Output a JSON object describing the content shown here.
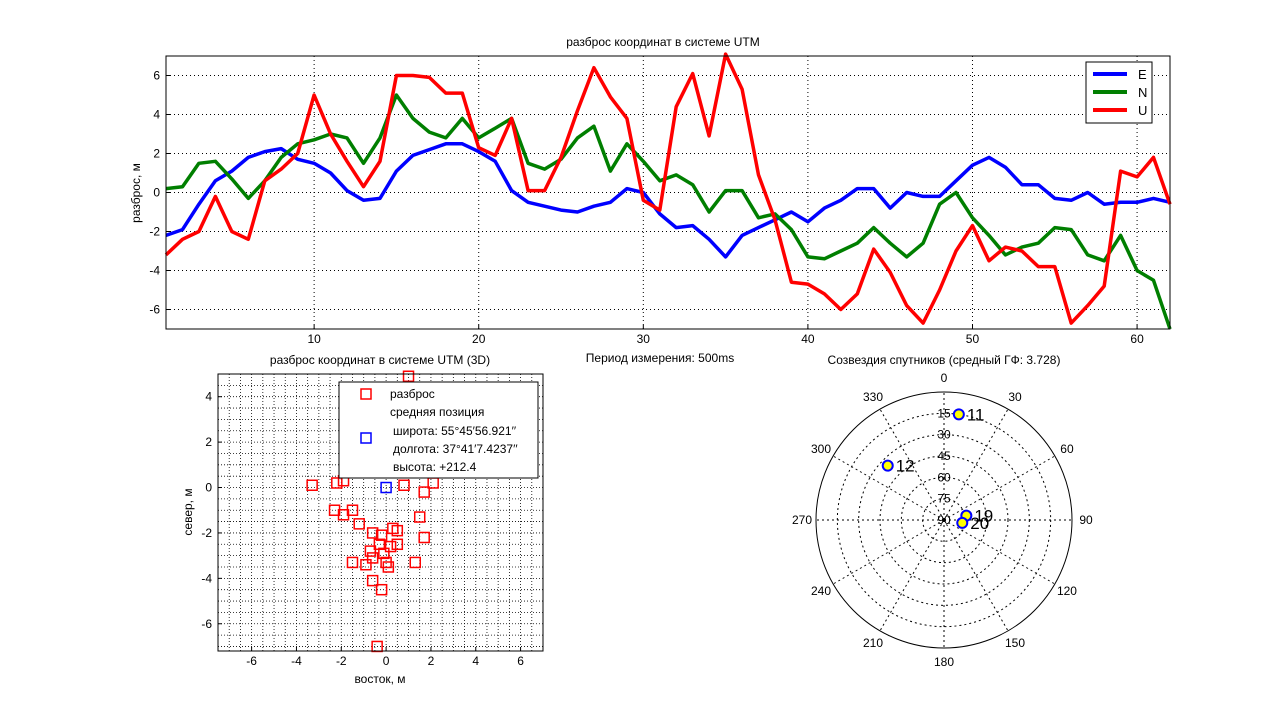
{
  "period_label": "Период измерения: 500ms",
  "chart_data": [
    {
      "type": "line",
      "title": "разброс координат в системе UTM",
      "xlabel": "",
      "ylabel": "разброс, м",
      "xlim": [
        1,
        62
      ],
      "ylim": [
        -7,
        7
      ],
      "xticks": [
        10,
        20,
        30,
        40,
        50,
        60
      ],
      "yticks": [
        -6,
        -4,
        -2,
        0,
        2,
        4,
        6
      ],
      "grid": true,
      "legend_position": "top-right",
      "x": [
        1,
        2,
        3,
        4,
        5,
        6,
        7,
        8,
        9,
        10,
        11,
        12,
        13,
        14,
        15,
        16,
        17,
        18,
        19,
        20,
        21,
        22,
        23,
        24,
        25,
        26,
        27,
        28,
        29,
        30,
        31,
        32,
        33,
        34,
        35,
        36,
        37,
        38,
        39,
        40,
        41,
        42,
        43,
        44,
        45,
        46,
        47,
        48,
        49,
        50,
        51,
        52,
        53,
        54,
        55,
        56,
        57,
        58,
        59,
        60,
        61,
        62
      ],
      "series": [
        {
          "name": "E",
          "color": "#0000ff",
          "values": [
            -2.2,
            -1.9,
            -0.6,
            0.6,
            1.1,
            1.8,
            2.1,
            2.25,
            1.7,
            1.5,
            1.0,
            0.1,
            -0.4,
            -0.3,
            1.1,
            1.9,
            2.2,
            2.5,
            2.5,
            2.1,
            1.6,
            0.1,
            -0.5,
            -0.7,
            -0.9,
            -1.0,
            -0.7,
            -0.5,
            0.2,
            0.0,
            -1.1,
            -1.8,
            -1.7,
            -2.4,
            -3.3,
            -2.2,
            -1.8,
            -1.4,
            -1.0,
            -1.5,
            -0.8,
            -0.4,
            0.2,
            0.2,
            -0.8,
            0.0,
            -0.2,
            -0.2,
            0.6,
            1.4,
            1.8,
            1.3,
            0.4,
            0.4,
            -0.3,
            -0.4,
            0.0,
            -0.6,
            -0.5,
            -0.5,
            -0.3,
            -0.5
          ]
        },
        {
          "name": "N",
          "color": "#007f00",
          "values": [
            0.2,
            0.3,
            1.5,
            1.6,
            0.7,
            -0.3,
            0.6,
            1.8,
            2.5,
            2.7,
            3.0,
            2.8,
            1.5,
            2.8,
            5.0,
            3.8,
            3.1,
            2.8,
            3.8,
            2.8,
            3.3,
            3.8,
            1.5,
            1.2,
            1.7,
            2.8,
            3.4,
            1.1,
            2.5,
            1.6,
            0.6,
            0.9,
            0.4,
            -1.0,
            0.1,
            0.1,
            -1.3,
            -1.1,
            -1.9,
            -3.3,
            -3.4,
            -3.0,
            -2.6,
            -1.8,
            -2.6,
            -3.3,
            -2.6,
            -0.6,
            0.0,
            -1.3,
            -2.2,
            -3.2,
            -2.8,
            -2.6,
            -1.8,
            -1.9,
            -3.2,
            -3.5,
            -2.2,
            -4.0,
            -4.5,
            -7.0
          ]
        },
        {
          "name": "U",
          "color": "#ff0000",
          "values": [
            -3.2,
            -2.4,
            -2.0,
            -0.2,
            -2.0,
            -2.4,
            0.6,
            1.2,
            2.0,
            5.0,
            3.0,
            1.6,
            0.3,
            1.6,
            6.0,
            6.0,
            5.9,
            5.1,
            5.1,
            2.3,
            1.9,
            3.8,
            0.1,
            0.1,
            1.8,
            4.2,
            6.4,
            4.9,
            3.8,
            -0.4,
            -0.9,
            4.4,
            6.1,
            2.9,
            7.1,
            5.3,
            0.9,
            -1.4,
            -4.6,
            -4.7,
            -5.2,
            -6.0,
            -5.2,
            -2.9,
            -4.1,
            -5.8,
            -6.7,
            -5.0,
            -3.0,
            -1.7,
            -3.5,
            -2.8,
            -3.0,
            -3.8,
            -3.8,
            -6.7,
            -5.8,
            -4.8,
            1.1,
            0.8,
            1.8,
            -0.6
          ]
        }
      ]
    },
    {
      "type": "scatter",
      "title": "разброс координат в системе UTM (3D)",
      "xlabel": "восток, м",
      "ylabel": "север, м",
      "xlim": [
        -7.5,
        7
      ],
      "ylim": [
        -7.2,
        5
      ],
      "xticks": [
        -6,
        -4,
        -2,
        0,
        2,
        4,
        6
      ],
      "yticks": [
        -6,
        -4,
        -2,
        0,
        2,
        4
      ],
      "grid": true,
      "legend_position": "top-right",
      "legend": {
        "scatter_label": "разброс",
        "mean_title": "средняя позиция",
        "lat": "широта: 55°45′56.921′′",
        "lon": "долгота: 37°41′7.4237′′",
        "alt": "высота: +212.4"
      },
      "series": [
        {
          "name": "разброс",
          "color": "#ff0000",
          "marker": "square",
          "points": [
            [
              1.0,
              4.9
            ],
            [
              -3.3,
              0.1
            ],
            [
              -2.2,
              0.2
            ],
            [
              -1.9,
              0.3
            ],
            [
              0.8,
              0.1
            ],
            [
              1.7,
              -0.2
            ],
            [
              2.1,
              0.2
            ],
            [
              -2.3,
              -1.0
            ],
            [
              -1.9,
              -1.2
            ],
            [
              -1.5,
              -1.0
            ],
            [
              -1.2,
              -1.6
            ],
            [
              1.5,
              -1.3
            ],
            [
              -0.6,
              -2.0
            ],
            [
              -0.2,
              -2.1
            ],
            [
              0.3,
              -1.8
            ],
            [
              0.5,
              -1.9
            ],
            [
              1.7,
              -2.2
            ],
            [
              -0.3,
              -2.5
            ],
            [
              0.2,
              -2.6
            ],
            [
              0.5,
              -2.5
            ],
            [
              -0.7,
              -2.8
            ],
            [
              -0.1,
              -2.9
            ],
            [
              -1.5,
              -3.3
            ],
            [
              -0.6,
              -3.1
            ],
            [
              -0.9,
              -3.4
            ],
            [
              0.0,
              -3.3
            ],
            [
              0.1,
              -3.5
            ],
            [
              1.3,
              -3.3
            ],
            [
              -0.6,
              -4.1
            ],
            [
              -0.2,
              -4.5
            ],
            [
              -0.4,
              -7.0
            ]
          ]
        },
        {
          "name": "средняя позиция",
          "color": "#0000ff",
          "marker": "square",
          "points": [
            [
              0.0,
              0.0
            ]
          ]
        }
      ]
    },
    {
      "type": "scatter",
      "title": "Созвездия спутников  (средный ГФ: 3.728)",
      "polar": true,
      "angle_ticks": [
        "0",
        "30",
        "60",
        "90",
        "120",
        "150",
        "180",
        "210",
        "240",
        "270",
        "300",
        "330"
      ],
      "elevation_ticks": [
        "15",
        "30",
        "45",
        "60",
        "75",
        "90"
      ],
      "series": [
        {
          "name": "",
          "marker_color": "#ffff00",
          "edge_color": "#0000ff",
          "points": [
            {
              "label": "11",
              "azimuth": 8,
              "elevation": 15
            },
            {
              "label": "12",
              "azimuth": 314,
              "elevation": 35
            },
            {
              "label": "19",
              "azimuth": 79,
              "elevation": 74
            },
            {
              "label": "20",
              "azimuth": 99,
              "elevation": 77
            }
          ]
        }
      ]
    }
  ]
}
